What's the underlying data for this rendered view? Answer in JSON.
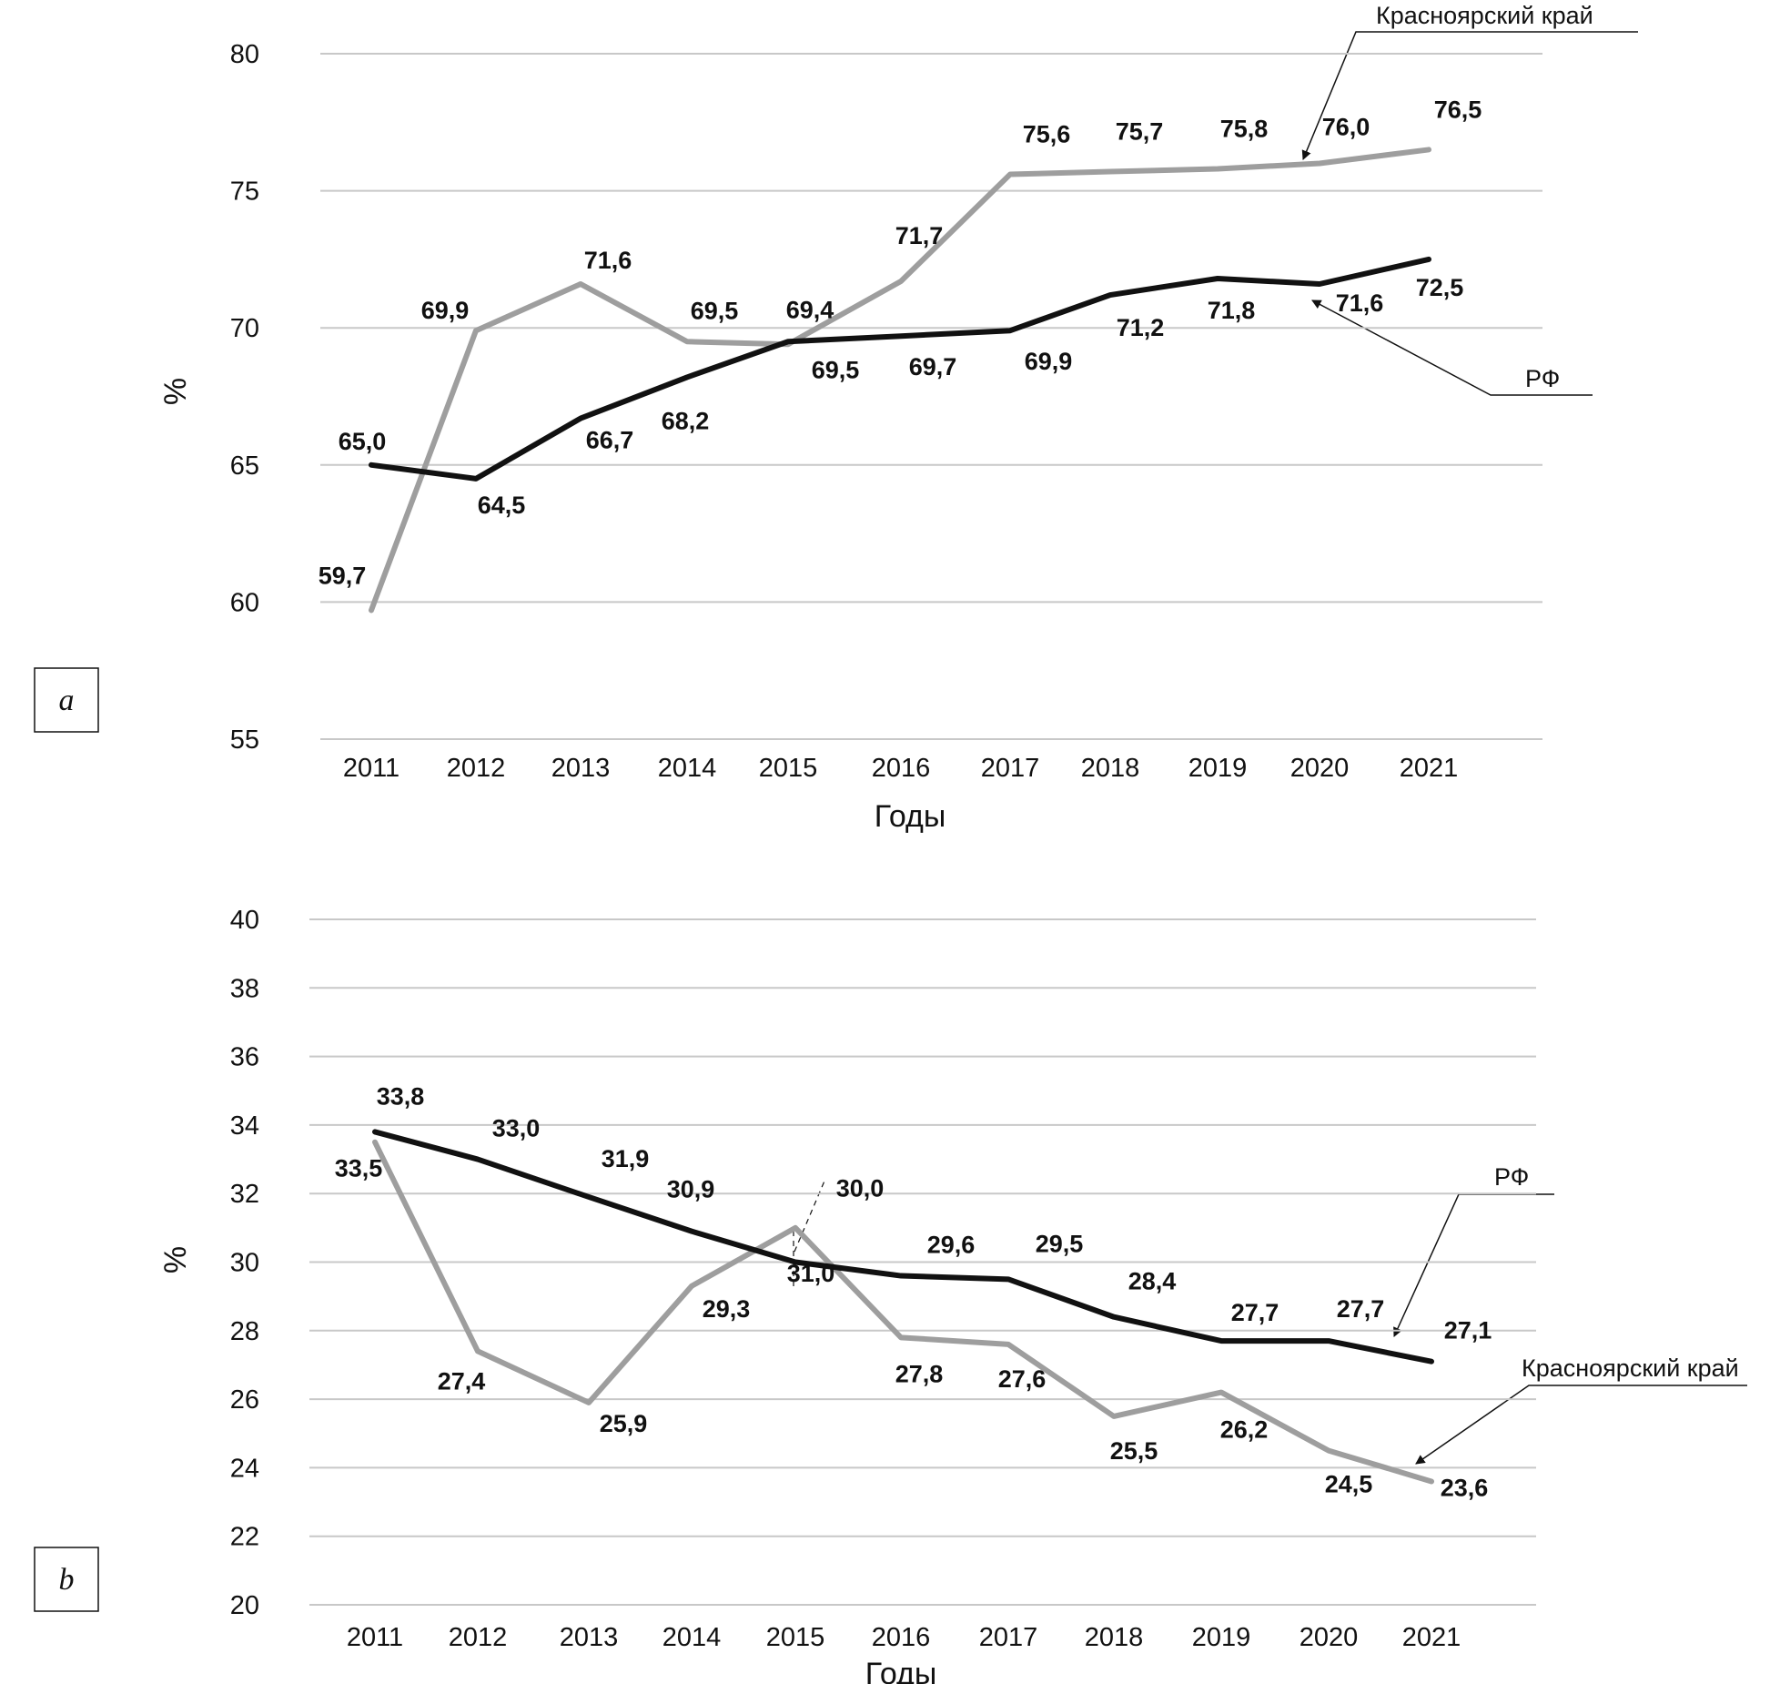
{
  "chart_data": [
    {
      "panel": "a",
      "type": "line",
      "categories": [
        "2011",
        "2012",
        "2013",
        "2014",
        "2015",
        "2016",
        "2017",
        "2018",
        "2019",
        "2020",
        "2021"
      ],
      "ylim": [
        55,
        80
      ],
      "yticks": [
        55,
        60,
        65,
        70,
        75,
        80
      ],
      "xlabel": "Годы",
      "ylabel": "%",
      "grid": true,
      "series": [
        {
          "name": "РФ",
          "color": "#111111",
          "values": [
            65.0,
            64.5,
            66.7,
            68.2,
            69.5,
            69.7,
            69.9,
            71.2,
            71.8,
            71.6,
            72.5
          ],
          "labels": [
            "65,0",
            "64,5",
            "66,7",
            "68,2",
            "69,5",
            "69,7",
            "69,9",
            "71,2",
            "71,8",
            "71,6",
            "72,5"
          ]
        },
        {
          "name": "Красноярский край",
          "color": "#9e9e9e",
          "values": [
            59.7,
            69.9,
            71.6,
            69.5,
            69.4,
            71.7,
            75.6,
            75.7,
            75.8,
            76.0,
            76.5
          ],
          "labels": [
            "59,7",
            "69,9",
            "71,6",
            "69,5",
            "69,4",
            "71,7",
            "75,6",
            "75,7",
            "75,8",
            "76,0",
            "76,5"
          ]
        }
      ]
    },
    {
      "panel": "b",
      "type": "line",
      "categories": [
        "2011",
        "2012",
        "2013",
        "2014",
        "2015",
        "2016",
        "2017",
        "2018",
        "2019",
        "2020",
        "2021"
      ],
      "ylim": [
        20,
        40
      ],
      "yticks": [
        20,
        22,
        24,
        26,
        28,
        30,
        32,
        34,
        36,
        38,
        40
      ],
      "xlabel": "Годы",
      "ylabel": "%",
      "grid": true,
      "series": [
        {
          "name": "РФ",
          "color": "#111111",
          "values": [
            33.8,
            33.0,
            31.9,
            30.9,
            30.0,
            29.6,
            29.5,
            28.4,
            27.7,
            27.7,
            27.1
          ],
          "labels": [
            "33,8",
            "33,0",
            "31,9",
            "30,9",
            "30,0",
            "29,6",
            "29,5",
            "28,4",
            "27,7",
            "27,7",
            "27,1"
          ]
        },
        {
          "name": "Красноярский край",
          "color": "#9e9e9e",
          "values": [
            33.5,
            27.4,
            25.9,
            29.3,
            31.0,
            27.8,
            27.6,
            25.5,
            26.2,
            24.5,
            23.6
          ],
          "labels": [
            "33,5",
            "27,4",
            "25,9",
            "29,3",
            "31,0",
            "27,8",
            "27,6",
            "25,5",
            "26,2",
            "24,5",
            "23,6"
          ]
        }
      ]
    }
  ]
}
